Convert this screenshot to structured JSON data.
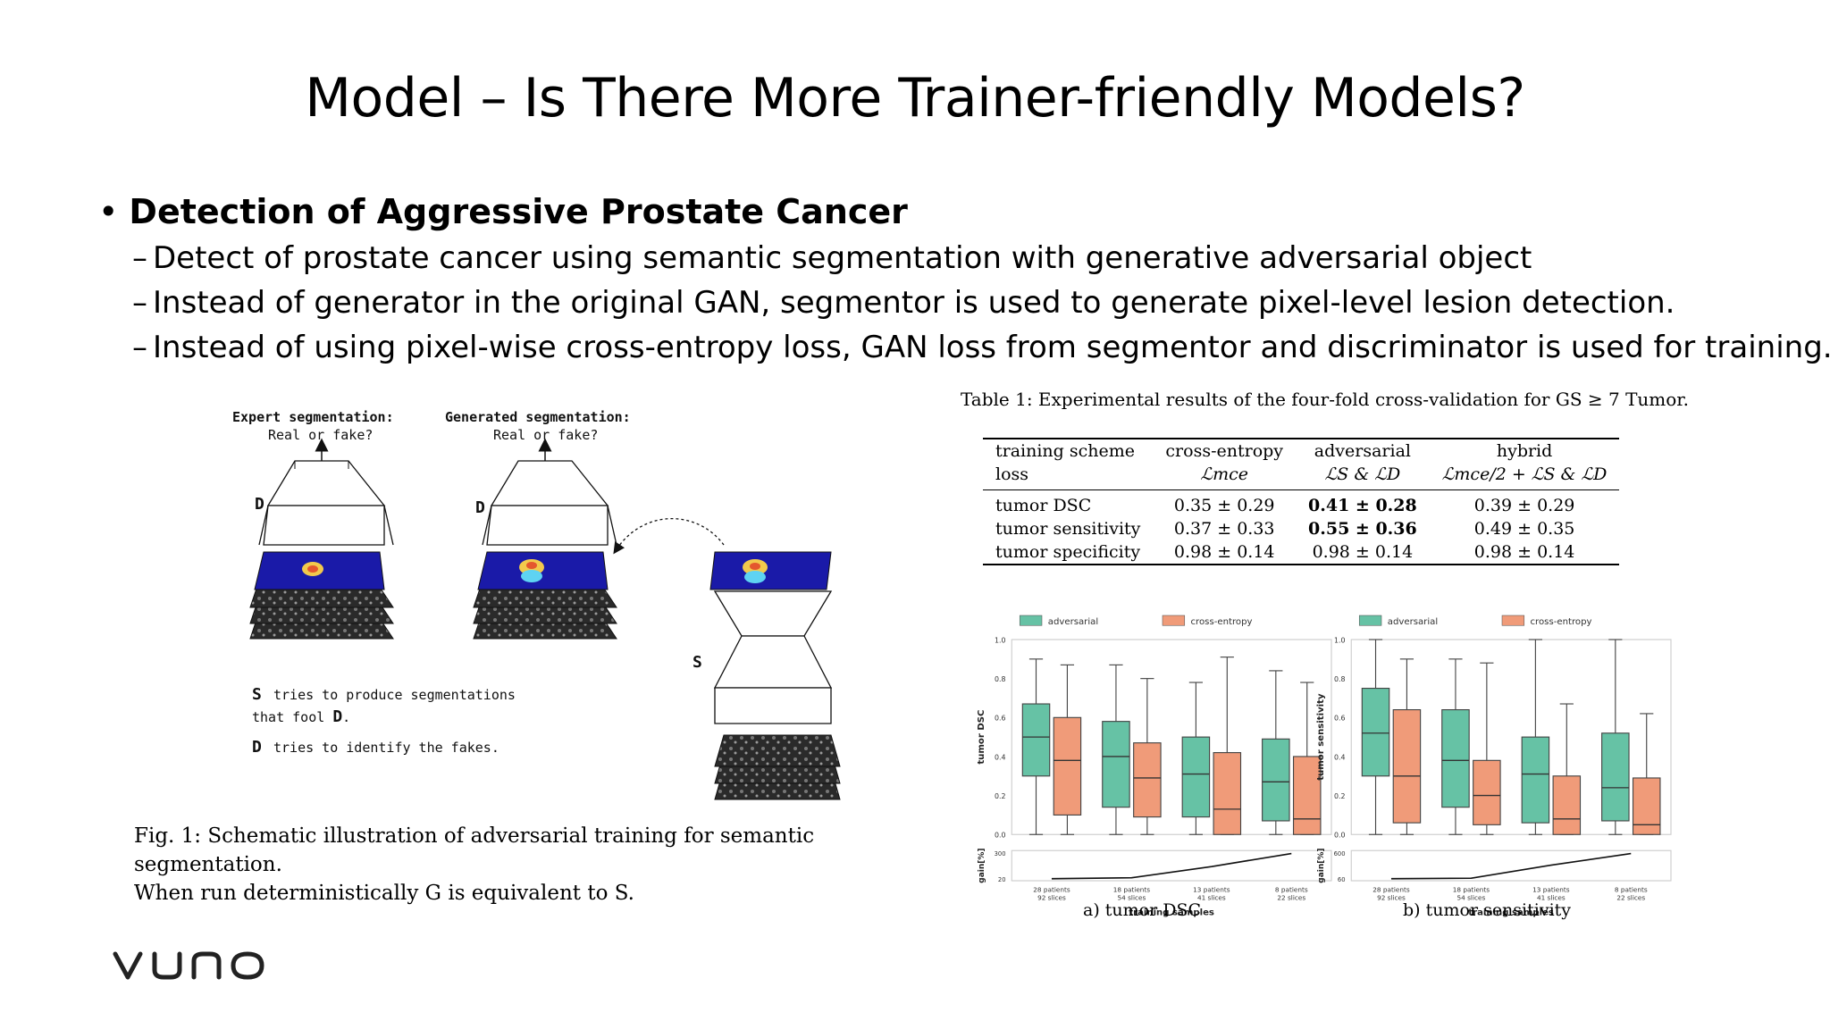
{
  "title": "Model – Is There More Trainer-friendly Models?",
  "bullet": {
    "marker": "•",
    "heading": "Detection of Aggressive Prostate Cancer",
    "dash": "–",
    "items": [
      "Detect of prostate cancer using semantic segmentation with generative adversarial object",
      "Instead of generator in the original GAN, segmentor is used to generate pixel-level lesion detection.",
      "Instead of using pixel-wise cross-entropy loss, GAN loss from segmentor and discriminator is used for training."
    ]
  },
  "figure": {
    "expert_label": "Expert segmentation:",
    "generated_label": "Generated segmentation:",
    "real_or_fake": "Real or fake?",
    "d_label": "D",
    "s_label": "S",
    "s_line1": "tries to produce segmentations",
    "s_line2a": "that fool",
    "s_line2b": "D",
    "s_line2c": ".",
    "d_line": "tries to identify the fakes.",
    "caption_line1": "Fig. 1: Schematic illustration of adversarial training for semantic segmentation.",
    "caption_line2": "When run deterministically G is equivalent to S."
  },
  "table": {
    "caption": "Table 1: Experimental results of the four-fold cross-validation for GS ≥ 7 Tumor.",
    "headers_top": [
      "training scheme",
      "cross-entropy",
      "adversarial",
      "hybrid"
    ],
    "headers_bottom": [
      "loss",
      "ℒmce",
      "ℒS & ℒD",
      "ℒmce/2 + ℒS & ℒD"
    ],
    "rows": [
      [
        "tumor DSC",
        "0.35 ± 0.29",
        "0.41 ± 0.28",
        "0.39 ± 0.29"
      ],
      [
        "tumor sensitivity",
        "0.37 ± 0.33",
        "0.55 ± 0.36",
        "0.49 ± 0.35"
      ],
      [
        "tumor specificity",
        "0.98 ± 0.14",
        "0.98 ± 0.14",
        "0.98 ± 0.14"
      ]
    ]
  },
  "colors": {
    "adversarial": "#66c2a5",
    "cross_entropy": "#f09b79",
    "heatmap_bg": "#1a1aa8"
  },
  "chart_data": [
    {
      "type": "box",
      "caption": "a) tumor DSC",
      "legend": [
        "adversarial",
        "cross-entropy"
      ],
      "ylabel": "tumor DSC",
      "ylim": [
        0,
        1.0
      ],
      "yticks": [
        "0.0",
        "0.2",
        "0.4",
        "0.6",
        "0.8",
        "1.0"
      ],
      "categories": [
        "28 patients\n92 slices",
        "18 patients\n54 slices",
        "13 patients\n41 slices",
        "8 patients\n22 slices"
      ],
      "series": [
        {
          "name": "adversarial",
          "boxes": [
            {
              "whislo": 0.0,
              "q1": 0.3,
              "med": 0.5,
              "q3": 0.67,
              "whishi": 0.9
            },
            {
              "whislo": 0.0,
              "q1": 0.14,
              "med": 0.4,
              "q3": 0.58,
              "whishi": 0.87
            },
            {
              "whislo": 0.0,
              "q1": 0.09,
              "med": 0.31,
              "q3": 0.5,
              "whishi": 0.78
            },
            {
              "whislo": 0.0,
              "q1": 0.07,
              "med": 0.27,
              "q3": 0.49,
              "whishi": 0.84
            }
          ]
        },
        {
          "name": "cross-entropy",
          "boxes": [
            {
              "whislo": 0.0,
              "q1": 0.1,
              "med": 0.38,
              "q3": 0.6,
              "whishi": 0.87
            },
            {
              "whislo": 0.0,
              "q1": 0.09,
              "med": 0.29,
              "q3": 0.47,
              "whishi": 0.8
            },
            {
              "whislo": 0.0,
              "q1": 0.0,
              "med": 0.13,
              "q3": 0.42,
              "whishi": 0.91
            },
            {
              "whislo": 0.0,
              "q1": 0.0,
              "med": 0.08,
              "q3": 0.4,
              "whishi": 0.78
            }
          ]
        }
      ],
      "gain": {
        "ylabel": "gain[%]",
        "yticks": [
          "20",
          "300"
        ],
        "ylim": [
          20,
          300
        ],
        "values": [
          20,
          30,
          150,
          290
        ]
      },
      "xlabel": "training samples"
    },
    {
      "type": "box",
      "caption": "b) tumor sensitivity",
      "legend": [
        "adversarial",
        "cross-entropy"
      ],
      "ylabel": "tumor sensitivity",
      "ylim": [
        0,
        1.0
      ],
      "yticks": [
        "0.0",
        "0.2",
        "0.4",
        "0.6",
        "0.8",
        "1.0"
      ],
      "categories": [
        "28 patients\n92 slices",
        "18 patients\n54 slices",
        "13 patients\n41 slices",
        "8 patients\n22 slices"
      ],
      "series": [
        {
          "name": "adversarial",
          "boxes": [
            {
              "whislo": 0.0,
              "q1": 0.3,
              "med": 0.52,
              "q3": 0.75,
              "whishi": 1.0
            },
            {
              "whislo": 0.0,
              "q1": 0.14,
              "med": 0.38,
              "q3": 0.64,
              "whishi": 0.9
            },
            {
              "whislo": 0.0,
              "q1": 0.06,
              "med": 0.31,
              "q3": 0.5,
              "whishi": 1.0
            },
            {
              "whislo": 0.0,
              "q1": 0.07,
              "med": 0.24,
              "q3": 0.52,
              "whishi": 1.0
            }
          ]
        },
        {
          "name": "cross-entropy",
          "boxes": [
            {
              "whislo": 0.0,
              "q1": 0.06,
              "med": 0.3,
              "q3": 0.64,
              "whishi": 0.9
            },
            {
              "whislo": 0.0,
              "q1": 0.05,
              "med": 0.2,
              "q3": 0.38,
              "whishi": 0.88
            },
            {
              "whislo": 0.0,
              "q1": 0.0,
              "med": 0.08,
              "q3": 0.3,
              "whishi": 0.67
            },
            {
              "whislo": 0.0,
              "q1": 0.0,
              "med": 0.05,
              "q3": 0.29,
              "whishi": 0.62
            }
          ]
        }
      ],
      "gain": {
        "ylabel": "gain[%]",
        "yticks": [
          "60",
          "600"
        ],
        "ylim": [
          60,
          600
        ],
        "values": [
          60,
          70,
          340,
          580
        ]
      },
      "xlabel": "training samples"
    }
  ],
  "logo": {
    "text": "vuno"
  }
}
